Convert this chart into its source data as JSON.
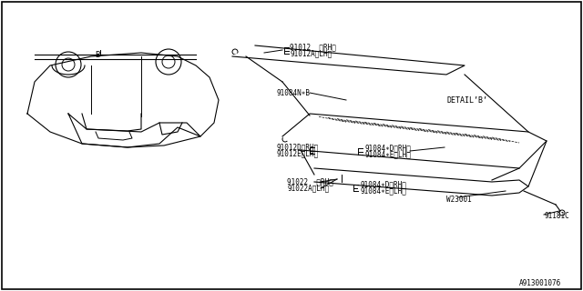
{
  "title": "",
  "background_color": "#ffffff",
  "border_color": "#000000",
  "fig_width": 6.4,
  "fig_height": 3.2,
  "dpi": 100,
  "footer_text": "A913001076",
  "labels": {
    "part_91022": "91022  〈RH〉",
    "part_91022A": "91022A〈LH〉",
    "part_91084D_RH_top": "91084∗D〈RH〉",
    "part_91084E_LH_top": "91084∗E〈LH〉",
    "part_W23001": "W23001",
    "part_91181C": "91181C",
    "part_91012D": "91012D〈RH〉",
    "part_91012E": "91012E〈LH〉",
    "part_91084D_RH_mid": "91084∗D〈RH〉",
    "part_91084E_LH_mid": "91084∗E〈LH〉",
    "part_91084NB": "91084N∗B",
    "detail_b": "DETAIL’B’",
    "part_91012": "91012  〈RH〉",
    "part_91012A": "91012A〈LH〉",
    "label_B": "B"
  }
}
